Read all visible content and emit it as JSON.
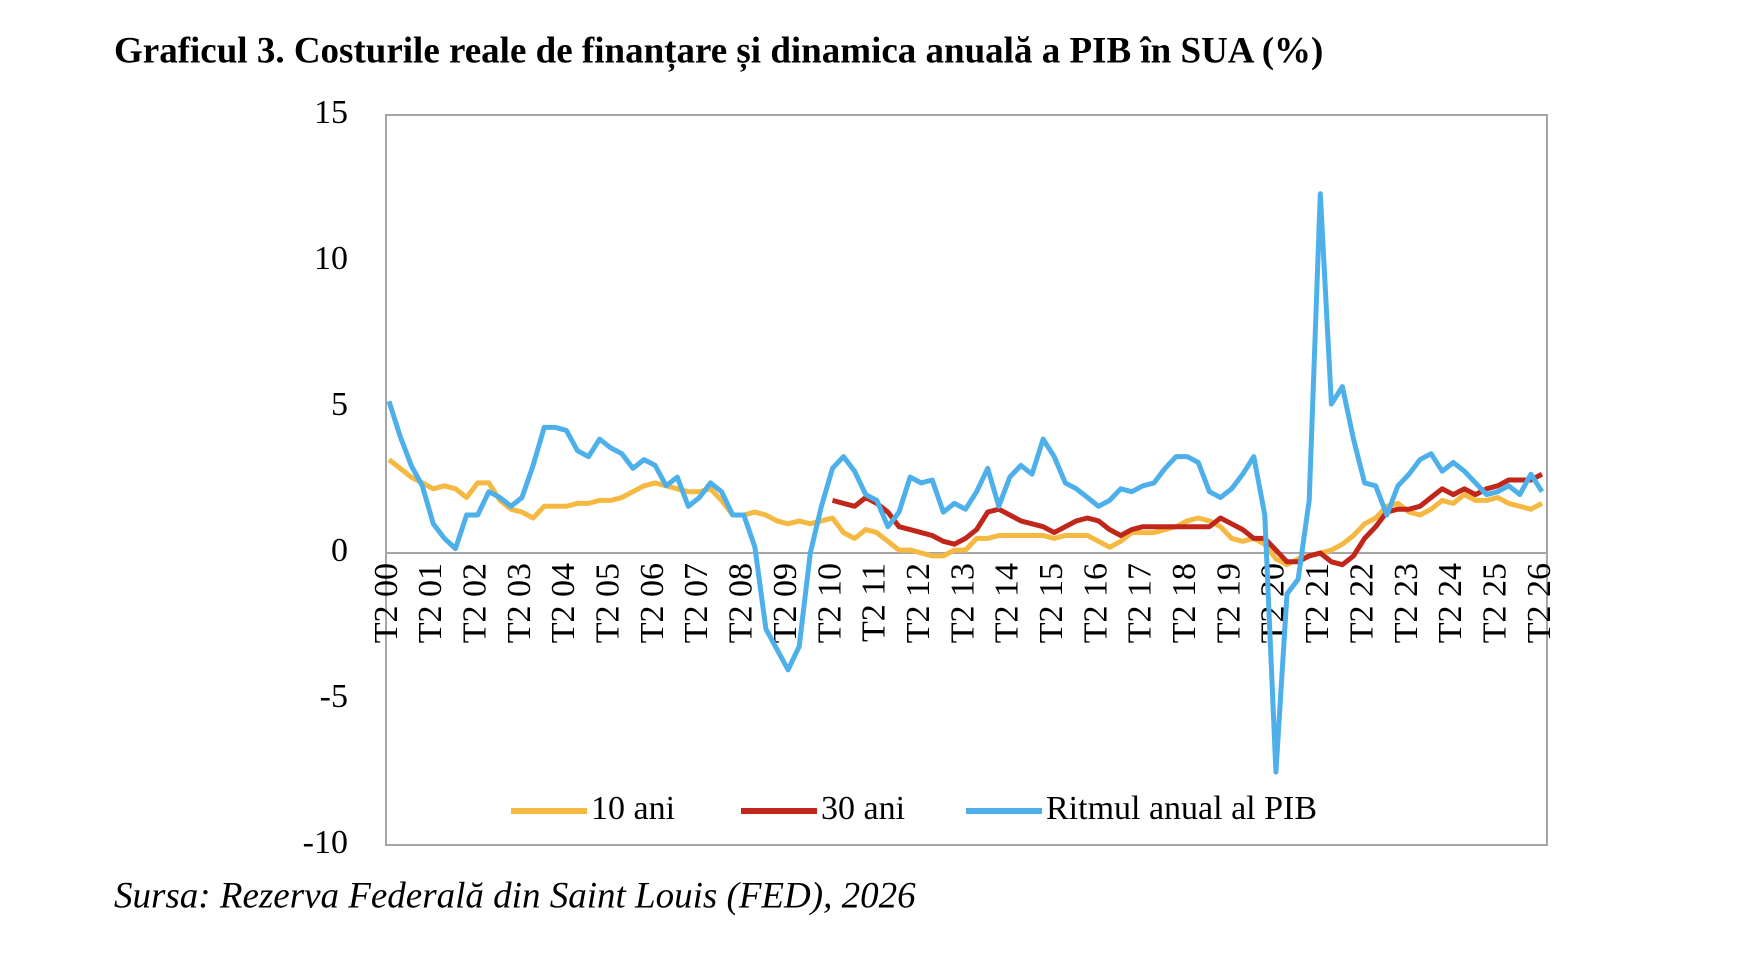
{
  "chart_data": {
    "type": "line",
    "title": "Graficul 3. Costurile reale de finanțare și dinamica anuală a PIB în SUA (%)",
    "source": "Sursa: Rezerva Federală din Saint Louis (FED), 2026",
    "categories": [
      "T2 00",
      null,
      null,
      null,
      "T2 01",
      null,
      null,
      null,
      "T2 02",
      null,
      null,
      null,
      "T2 03",
      null,
      null,
      null,
      "T2 04",
      null,
      null,
      null,
      "T2 05",
      null,
      null,
      null,
      "T2 06",
      null,
      null,
      null,
      "T2 07",
      null,
      null,
      null,
      "T2 08",
      null,
      null,
      null,
      "T2 09",
      null,
      null,
      null,
      "T2 10",
      null,
      null,
      null,
      "T2 11",
      null,
      null,
      null,
      "T2 12",
      null,
      null,
      null,
      "T2 13",
      null,
      null,
      null,
      "T2 14",
      null,
      null,
      null,
      "T2 15",
      null,
      null,
      null,
      "T2 16",
      null,
      null,
      null,
      "T2 17",
      null,
      null,
      null,
      "T2 18",
      null,
      null,
      null,
      "T2 19",
      null,
      null,
      null,
      "T2 20",
      null,
      null,
      null,
      "T2 21",
      null,
      null,
      null,
      "T2 22",
      null,
      null,
      null,
      "T2 23",
      null,
      null,
      null,
      "T2 24",
      null,
      null,
      null,
      "T2 25",
      null,
      null,
      null,
      "T2 26"
    ],
    "series": [
      {
        "name": "10 ani",
        "color": "#f5b942",
        "values": [
          3.2,
          2.9,
          2.6,
          2.4,
          2.2,
          2.3,
          2.2,
          1.9,
          2.4,
          2.4,
          1.8,
          1.5,
          1.4,
          1.2,
          1.6,
          1.6,
          1.6,
          1.7,
          1.7,
          1.8,
          1.8,
          1.9,
          2.1,
          2.3,
          2.4,
          2.3,
          2.2,
          2.1,
          2.1,
          2.2,
          1.8,
          1.3,
          1.3,
          1.4,
          1.3,
          1.1,
          1.0,
          1.1,
          1.0,
          1.1,
          1.2,
          0.7,
          0.5,
          0.8,
          0.7,
          0.4,
          0.1,
          0.1,
          0.0,
          -0.1,
          -0.1,
          0.1,
          0.1,
          0.5,
          0.5,
          0.6,
          0.6,
          0.6,
          0.6,
          0.6,
          0.5,
          0.6,
          0.6,
          0.6,
          0.4,
          0.2,
          0.4,
          0.7,
          0.7,
          0.7,
          0.8,
          0.9,
          1.1,
          1.2,
          1.1,
          0.9,
          0.5,
          0.4,
          0.5,
          0.3,
          -0.2,
          -0.4,
          -0.2,
          -0.1,
          0.0,
          0.1,
          0.3,
          0.6,
          1.0,
          1.2,
          1.6,
          1.7,
          1.4,
          1.3,
          1.5,
          1.8,
          1.7,
          2.0,
          1.8,
          1.8,
          1.9,
          1.7,
          1.6,
          1.5,
          1.7
        ]
      },
      {
        "name": "30 ani",
        "color": "#c0261a",
        "values": [
          null,
          null,
          null,
          null,
          null,
          null,
          null,
          null,
          null,
          null,
          null,
          null,
          null,
          null,
          null,
          null,
          null,
          null,
          null,
          null,
          null,
          null,
          null,
          null,
          null,
          null,
          null,
          null,
          null,
          null,
          null,
          null,
          null,
          null,
          null,
          null,
          null,
          null,
          null,
          null,
          1.8,
          1.7,
          1.6,
          1.9,
          1.7,
          1.4,
          0.9,
          0.8,
          0.7,
          0.6,
          0.4,
          0.3,
          0.5,
          0.8,
          1.4,
          1.5,
          1.3,
          1.1,
          1.0,
          0.9,
          0.7,
          0.9,
          1.1,
          1.2,
          1.1,
          0.8,
          0.6,
          0.8,
          0.9,
          0.9,
          0.9,
          0.9,
          0.9,
          0.9,
          0.9,
          1.2,
          1.0,
          0.8,
          0.5,
          0.5,
          0.1,
          -0.3,
          -0.3,
          -0.1,
          0.0,
          -0.3,
          -0.4,
          -0.1,
          0.5,
          0.9,
          1.4,
          1.5,
          1.5,
          1.6,
          1.9,
          2.2,
          2.0,
          2.2,
          2.0,
          2.2,
          2.3,
          2.5,
          2.5,
          2.5,
          2.7
        ]
      },
      {
        "name": "Ritmul anual al PIB",
        "color": "#4eb0ea",
        "values": [
          5.2,
          4.0,
          3.0,
          2.3,
          1.0,
          0.5,
          0.15,
          1.3,
          1.3,
          2.1,
          1.9,
          1.6,
          1.9,
          3.0,
          4.3,
          4.3,
          4.2,
          3.5,
          3.3,
          3.9,
          3.6,
          3.4,
          2.9,
          3.2,
          3.0,
          2.3,
          2.6,
          1.6,
          1.9,
          2.4,
          2.1,
          1.3,
          1.3,
          0.2,
          -2.6,
          -3.3,
          -4.0,
          -3.2,
          0.0,
          1.6,
          2.9,
          3.3,
          2.8,
          2.0,
          1.8,
          0.9,
          1.4,
          2.6,
          2.4,
          2.5,
          1.4,
          1.7,
          1.5,
          2.1,
          2.9,
          1.6,
          2.6,
          3.0,
          2.7,
          3.9,
          3.3,
          2.4,
          2.2,
          1.9,
          1.6,
          1.8,
          2.2,
          2.1,
          2.3,
          2.4,
          2.9,
          3.3,
          3.3,
          3.1,
          2.1,
          1.9,
          2.2,
          2.7,
          3.3,
          1.3,
          -7.5,
          -1.4,
          -0.9,
          1.8,
          12.3,
          5.1,
          5.7,
          3.9,
          2.4,
          2.3,
          1.3,
          2.3,
          2.7,
          3.2,
          3.4,
          2.8,
          3.1,
          2.8,
          2.4,
          2.0,
          2.1,
          2.3,
          2.0,
          2.7,
          2.1
        ]
      }
    ],
    "ylim": [
      -10,
      15
    ],
    "yticks": [
      15,
      10,
      5,
      0,
      -5,
      -10
    ],
    "grid": false,
    "legend": "bottom"
  }
}
